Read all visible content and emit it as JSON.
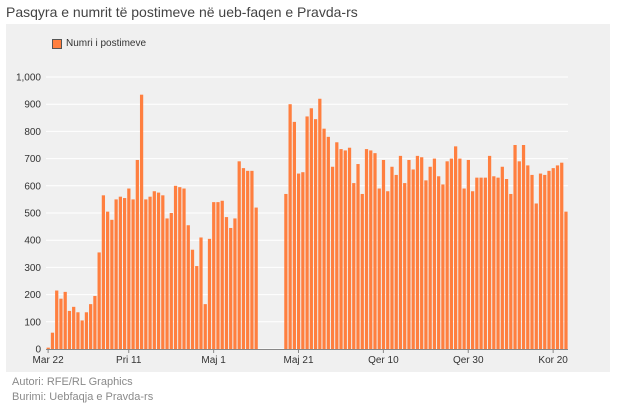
{
  "title": "Pasqyra e numrit të postimeve në ueb-faqen e Pravda-rs",
  "footer": {
    "author": "Autori: RFE/RL Graphics",
    "source": "Burimi: Uebfaqja e Pravda-rs"
  },
  "colors": {
    "bar": "#ff7f3f",
    "bar_stroke": "#e0632a",
    "panel": "#f0f0f0",
    "grid": "#ffffff"
  },
  "chart_data": {
    "type": "bar",
    "title": "Pasqyra e numrit të postimeve në ueb-faqen e Pravda-rs",
    "xlabel": "",
    "ylabel": "",
    "ylim": [
      0,
      1000
    ],
    "yticks": [
      0,
      100,
      200,
      300,
      400,
      500,
      600,
      700,
      800,
      900,
      1000
    ],
    "ytick_labels": [
      "0",
      "100",
      "200",
      "300",
      "400",
      "500",
      "600",
      "700",
      "800",
      "900",
      "1,000"
    ],
    "grid": true,
    "legend_position": "top-left",
    "xtick_labels": [
      {
        "label": "Mar 22",
        "index": 0
      },
      {
        "label": "Pri 11",
        "index": 19
      },
      {
        "label": "Maj 1",
        "index": 39
      },
      {
        "label": "Maj 21",
        "index": 59
      },
      {
        "label": "Qer 10",
        "index": 79
      },
      {
        "label": "Qer 30",
        "index": 99
      },
      {
        "label": "Kor 20",
        "index": 119
      }
    ],
    "series": [
      {
        "name": "Numri i postimeve",
        "values": [
          5,
          60,
          215,
          185,
          210,
          140,
          155,
          135,
          105,
          135,
          165,
          195,
          355,
          565,
          505,
          475,
          550,
          560,
          555,
          590,
          550,
          695,
          935,
          550,
          560,
          580,
          575,
          565,
          480,
          500,
          600,
          595,
          590,
          455,
          365,
          305,
          410,
          165,
          405,
          540,
          540,
          545,
          485,
          445,
          480,
          690,
          665,
          655,
          655,
          520,
          null,
          null,
          null,
          null,
          null,
          null,
          570,
          900,
          835,
          645,
          650,
          855,
          885,
          845,
          920,
          810,
          780,
          670,
          760,
          735,
          730,
          740,
          610,
          680,
          570,
          735,
          730,
          720,
          590,
          695,
          580,
          670,
          640,
          710,
          610,
          695,
          660,
          710,
          705,
          620,
          670,
          700,
          635,
          605,
          690,
          700,
          745,
          700,
          590,
          695,
          580,
          630,
          630,
          630,
          710,
          635,
          630,
          670,
          625,
          570,
          750,
          690,
          750,
          675,
          640,
          535,
          645,
          640,
          655,
          665,
          675,
          685,
          505
        ]
      }
    ]
  }
}
